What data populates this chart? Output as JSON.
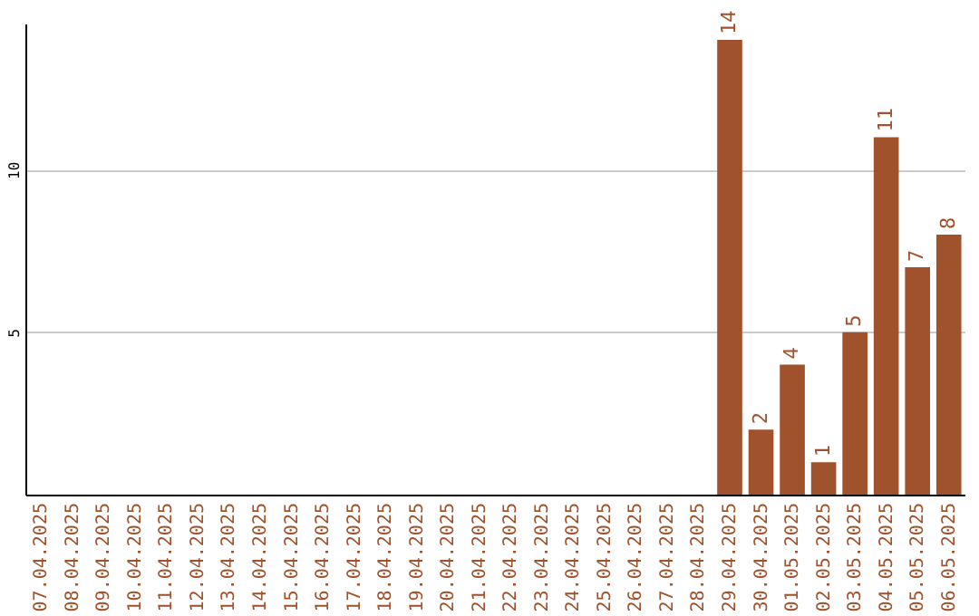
{
  "chart_data": {
    "type": "bar",
    "categories": [
      "07.04.2025",
      "08.04.2025",
      "09.04.2025",
      "10.04.2025",
      "11.04.2025",
      "12.04.2025",
      "13.04.2025",
      "14.04.2025",
      "15.04.2025",
      "16.04.2025",
      "17.04.2025",
      "18.04.2025",
      "19.04.2025",
      "20.04.2025",
      "21.04.2025",
      "22.04.2025",
      "23.04.2025",
      "24.04.2025",
      "25.04.2025",
      "26.04.2025",
      "27.04.2025",
      "28.04.2025",
      "29.04.2025",
      "30.04.2025",
      "01.05.2025",
      "02.05.2025",
      "03.05.2025",
      "04.05.2025",
      "05.05.2025",
      "06.05.2025"
    ],
    "values": [
      null,
      null,
      null,
      null,
      null,
      null,
      null,
      null,
      null,
      null,
      null,
      null,
      null,
      null,
      null,
      null,
      null,
      null,
      null,
      null,
      null,
      null,
      14,
      2,
      4,
      1,
      5,
      11,
      7,
      8
    ],
    "color": "#a0522d",
    "ylim": [
      0,
      14.5
    ],
    "yticks": [
      5,
      10
    ],
    "grid": "y",
    "data_labels": true
  }
}
